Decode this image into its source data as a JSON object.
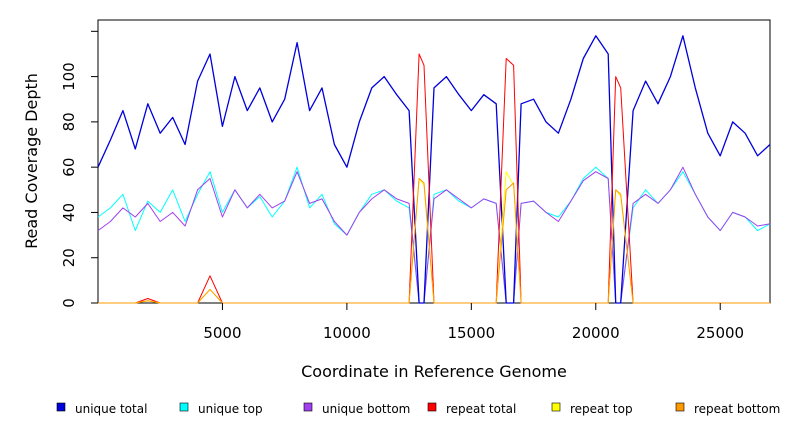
{
  "chart_data": {
    "type": "line",
    "title": "",
    "xlabel": "Coordinate in Reference Genome",
    "ylabel": "Read Coverage Depth",
    "xlim": [
      0,
      27000
    ],
    "ylim": [
      0,
      125
    ],
    "x_ticks": [
      5000,
      10000,
      15000,
      20000,
      25000
    ],
    "x_tick_labels": [
      "5000",
      "10000",
      "15000",
      "20000",
      "25000"
    ],
    "y_ticks": [
      0,
      20,
      40,
      60,
      80,
      100,
      120
    ],
    "y_tick_labels": [
      "0",
      "20",
      "40",
      "60",
      "80",
      "100",
      ""
    ],
    "grid": false,
    "legend_position": "bottom",
    "x": [
      0,
      500,
      1000,
      1500,
      2000,
      2500,
      3000,
      3500,
      4000,
      4500,
      5000,
      5500,
      6000,
      6500,
      7000,
      7500,
      8000,
      8500,
      9000,
      9500,
      10000,
      10500,
      11000,
      11500,
      12000,
      12500,
      12900,
      13100,
      13500,
      14000,
      14500,
      15000,
      15500,
      16000,
      16400,
      16700,
      17000,
      17500,
      18000,
      18500,
      19000,
      19500,
      20000,
      20500,
      20800,
      21000,
      21500,
      22000,
      22500,
      23000,
      23500,
      24000,
      24500,
      25000,
      25500,
      26000,
      26500,
      27000
    ],
    "series": [
      {
        "name": "unique total",
        "color": "#0000dd",
        "values": [
          60,
          72,
          85,
          68,
          88,
          75,
          82,
          70,
          98,
          110,
          78,
          100,
          85,
          95,
          80,
          90,
          115,
          85,
          95,
          70,
          60,
          80,
          95,
          100,
          92,
          85,
          0,
          0,
          95,
          100,
          92,
          85,
          92,
          88,
          0,
          0,
          88,
          90,
          80,
          75,
          90,
          108,
          118,
          110,
          0,
          0,
          85,
          98,
          88,
          100,
          118,
          95,
          75,
          65,
          80,
          75,
          65,
          70
        ]
      },
      {
        "name": "unique top",
        "color": "#00ffff",
        "values": [
          38,
          42,
          48,
          32,
          45,
          40,
          50,
          36,
          48,
          58,
          40,
          50,
          42,
          47,
          38,
          45,
          60,
          42,
          48,
          35,
          30,
          40,
          48,
          50,
          45,
          42,
          0,
          0,
          48,
          50,
          45,
          42,
          46,
          44,
          0,
          0,
          44,
          45,
          40,
          38,
          45,
          55,
          60,
          55,
          0,
          0,
          42,
          50,
          44,
          50,
          58,
          48,
          38,
          32,
          40,
          38,
          32,
          35
        ]
      },
      {
        "name": "unique bottom",
        "color": "#a040ee",
        "values": [
          32,
          36,
          42,
          38,
          44,
          36,
          40,
          34,
          50,
          55,
          38,
          50,
          42,
          48,
          42,
          45,
          58,
          44,
          46,
          36,
          30,
          40,
          46,
          50,
          46,
          44,
          0,
          0,
          46,
          50,
          46,
          42,
          46,
          44,
          0,
          0,
          44,
          45,
          40,
          36,
          45,
          54,
          58,
          55,
          0,
          0,
          44,
          48,
          44,
          50,
          60,
          48,
          38,
          32,
          40,
          38,
          34,
          35
        ]
      },
      {
        "name": "repeat total",
        "color": "#ff0000",
        "values": [
          0,
          0,
          0,
          0,
          2,
          0,
          0,
          0,
          0,
          12,
          0,
          0,
          0,
          0,
          0,
          0,
          0,
          0,
          0,
          0,
          0,
          0,
          0,
          0,
          0,
          0,
          110,
          105,
          0,
          0,
          0,
          0,
          0,
          0,
          108,
          105,
          0,
          0,
          0,
          0,
          0,
          0,
          0,
          0,
          100,
          95,
          0,
          0,
          0,
          0,
          0,
          0,
          0,
          0,
          0,
          0,
          0,
          0
        ]
      },
      {
        "name": "repeat top",
        "color": "#ffff00",
        "values": [
          0,
          0,
          0,
          0,
          1,
          0,
          0,
          0,
          0,
          6,
          0,
          0,
          0,
          0,
          0,
          0,
          0,
          0,
          0,
          0,
          0,
          0,
          0,
          0,
          0,
          0,
          55,
          52,
          0,
          0,
          0,
          0,
          0,
          0,
          58,
          52,
          0,
          0,
          0,
          0,
          0,
          0,
          0,
          0,
          50,
          47,
          0,
          0,
          0,
          0,
          0,
          0,
          0,
          0,
          0,
          0,
          0,
          0
        ]
      },
      {
        "name": "repeat bottom",
        "color": "#ff9900",
        "values": [
          0,
          0,
          0,
          0,
          1,
          0,
          0,
          0,
          0,
          6,
          0,
          0,
          0,
          0,
          0,
          0,
          0,
          0,
          0,
          0,
          0,
          0,
          0,
          0,
          0,
          0,
          55,
          53,
          0,
          0,
          0,
          0,
          0,
          0,
          50,
          53,
          0,
          0,
          0,
          0,
          0,
          0,
          0,
          0,
          50,
          48,
          0,
          0,
          0,
          0,
          0,
          0,
          0,
          0,
          0,
          0,
          0,
          0
        ]
      }
    ]
  }
}
